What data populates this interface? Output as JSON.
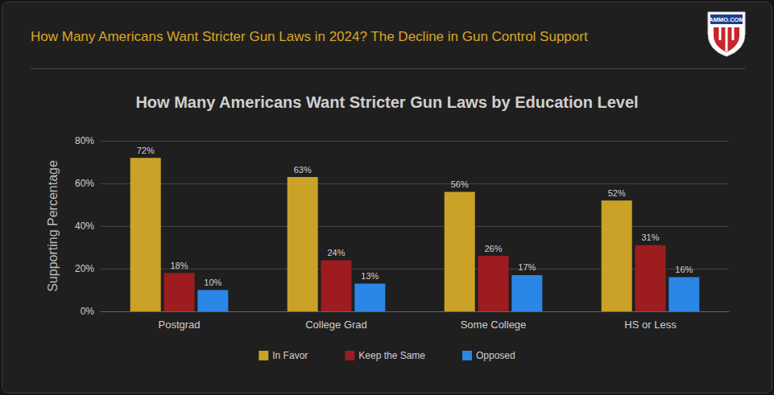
{
  "header": {
    "title": "How Many Americans Want Stricter Gun Laws in 2024? The Decline in Gun Control Support",
    "logo": "AMMO.COM"
  },
  "chart_data": {
    "type": "bar",
    "title": "How Many Americans Want Stricter Gun Laws by Education Level",
    "y_label": "Supporting Percentage",
    "categories": [
      "Postgrad",
      "College Grad",
      "Some College",
      "HS or Less"
    ],
    "series": [
      {
        "name": "In Favor",
        "color": "#c9a227",
        "values": [
          72,
          63,
          56,
          52
        ],
        "value_labels": [
          "72%",
          "63%",
          "56%",
          "52%"
        ]
      },
      {
        "name": "Keep the Same",
        "color": "#9c1c20",
        "values": [
          18,
          24,
          26,
          31
        ],
        "value_labels": [
          "18%",
          "24%",
          "26%",
          "31%"
        ]
      },
      {
        "name": "Opposed",
        "color": "#2b86e6",
        "values": [
          10,
          13,
          17,
          16
        ],
        "value_labels": [
          "10%",
          "13%",
          "17%",
          "16%"
        ]
      }
    ],
    "ylim": [
      0,
      80
    ],
    "yticks": [
      {
        "value": 0,
        "label": "0%"
      },
      {
        "value": 20,
        "label": "20%"
      },
      {
        "value": 40,
        "label": "40%"
      },
      {
        "value": 60,
        "label": "60%"
      },
      {
        "value": 80,
        "label": "80%"
      }
    ],
    "grid": true,
    "legend": "bottom",
    "data_labels": true
  }
}
